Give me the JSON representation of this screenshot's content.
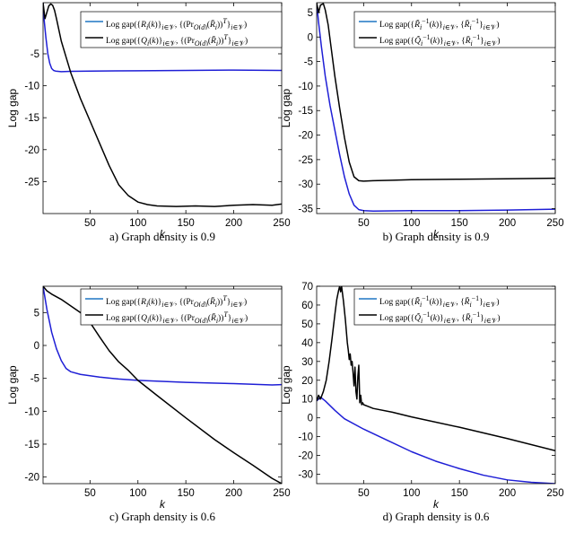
{
  "colors": {
    "blue": "#1f1fd6",
    "legend_blue": "#1f77c4",
    "black": "#000000"
  },
  "chart_data": [
    {
      "type": "line",
      "caption": "a) Graph density is 0.9",
      "xlabel": "k",
      "ylabel": "Log gap",
      "xlim": [
        1,
        250
      ],
      "ylim": [
        -30,
        3
      ],
      "xticks": [
        "50",
        "100",
        "150",
        "200",
        "250"
      ],
      "yticks": [
        "-5",
        "-10",
        "-15",
        "-20",
        "-25"
      ],
      "legend_position": "top-right",
      "grid": false,
      "series": [
        {
          "name": "Log gap({R_i(k)}_{i∈V}, {(Pr_{O(d)}(R̄_i))^T}_{i∈V})",
          "legend_html": "Log gap({<i>R<sub>i</sub></i>(<i>k</i>)}<sub><i>i</i>∈𝒱</sub>, {(Pr<sub><i>O</i>(<i>d</i>)</sub>(<i>R̄<sub>i</sub></i>))<sup><i>T</i></sup>}<sub><i>i</i>∈𝒱</sub>)",
          "color_key": "blue",
          "x": [
            1,
            2,
            4,
            6,
            8,
            10,
            12,
            14,
            20,
            30,
            50,
            100,
            150,
            200,
            250
          ],
          "y": [
            3,
            0.5,
            -2.5,
            -5,
            -6.5,
            -7.3,
            -7.6,
            -7.7,
            -7.8,
            -7.75,
            -7.7,
            -7.65,
            -7.6,
            -7.55,
            -7.6
          ]
        },
        {
          "name": "Log gap({Q_i(k)}_{i∈V}, {(Pr_{O(d)}(R̄_i))^T}_{i∈V})",
          "legend_html": "Log gap({<i>Q<sub>i</sub></i>(<i>k</i>)}<sub><i>i</i>∈𝒱</sub>, {(Pr<sub><i>O</i>(<i>d</i>)</sub>(<i>R̄<sub>i</sub></i>))<sup><i>T</i></sup>}<sub><i>i</i>∈𝒱</sub>)",
          "color_key": "black",
          "x": [
            1,
            3,
            5,
            7,
            9,
            11,
            13,
            15,
            20,
            25,
            30,
            40,
            50,
            60,
            70,
            80,
            90,
            100,
            110,
            120,
            140,
            160,
            180,
            200,
            220,
            240,
            250
          ],
          "y": [
            3,
            0.5,
            1.5,
            2.5,
            2.8,
            2.6,
            1.8,
            0.5,
            -3,
            -5.5,
            -8,
            -12,
            -15.5,
            -19,
            -22.5,
            -25.5,
            -27.2,
            -28.2,
            -28.6,
            -28.8,
            -28.9,
            -28.8,
            -28.9,
            -28.7,
            -28.6,
            -28.7,
            -28.5
          ]
        }
      ]
    },
    {
      "type": "line",
      "caption": "b) Graph density is 0.9",
      "xlabel": "k",
      "ylabel": "Log gap",
      "xlim": [
        1,
        250
      ],
      "ylim": [
        -36,
        7
      ],
      "xticks": [
        "50",
        "100",
        "150",
        "200",
        "250"
      ],
      "yticks": [
        "5",
        "0",
        "-5",
        "-10",
        "-15",
        "-20",
        "-25",
        "-30",
        "-35"
      ],
      "legend_position": "top-right",
      "grid": false,
      "series": [
        {
          "name": "Log gap({R̃_i^{-1}(k)}_{i∈V}, {R̄_i^{-1}}_{i∈V})",
          "legend_html": "Log gap({<i>R̃</i><sub><i>i</i></sub><sup>−1</sup>(<i>k</i>)}<sub><i>i</i>∈𝒱</sub>, {<i>R̄</i><sub><i>i</i></sub><sup>−1</sup>}<sub><i>i</i>∈𝒱</sub>)",
          "color_key": "blue",
          "x": [
            1,
            3,
            6,
            10,
            15,
            20,
            25,
            30,
            35,
            40,
            45,
            50,
            60,
            100,
            150,
            200,
            250
          ],
          "y": [
            7,
            3,
            -2,
            -8,
            -14,
            -19,
            -24,
            -28.5,
            -32,
            -34.3,
            -35.2,
            -35.4,
            -35.5,
            -35.4,
            -35.4,
            -35.3,
            -35.1
          ]
        },
        {
          "name": "Log gap({Q̃_i^{-1}(k)}_{i∈V}, {R̄_i^{-1}}_{i∈V})",
          "legend_html": "Log gap({<i>Q̃</i><sub><i>i</i></sub><sup>−1</sup>(<i>k</i>)}<sub><i>i</i>∈𝒱</sub>, {<i>R̄</i><sub><i>i</i></sub><sup>−1</sup>}<sub><i>i</i>∈𝒱</sub>)",
          "color_key": "black",
          "x": [
            1,
            3,
            5,
            8,
            10,
            13,
            16,
            20,
            25,
            30,
            35,
            40,
            45,
            50,
            60,
            80,
            100,
            150,
            200,
            250
          ],
          "y": [
            7,
            5,
            6.5,
            6.8,
            5.5,
            2.5,
            -2,
            -8,
            -14.5,
            -20.5,
            -25.5,
            -28.5,
            -29.3,
            -29.4,
            -29.3,
            -29.2,
            -29.1,
            -29,
            -28.9,
            -28.8
          ]
        }
      ]
    },
    {
      "type": "line",
      "caption": "c) Graph density is 0.6",
      "xlabel": "k",
      "ylabel": "Log gap",
      "xlim": [
        1,
        250
      ],
      "ylim": [
        -21,
        9
      ],
      "xticks": [
        "50",
        "100",
        "150",
        "200",
        "250"
      ],
      "yticks": [
        "5",
        "0",
        "-5",
        "-10",
        "-15",
        "-20"
      ],
      "legend_position": "top-right",
      "grid": false,
      "series": [
        {
          "name": "Log gap({R_i(k)}_{i∈V}, {(Pr_{O(d)}(R̄_i))^T}_{i∈V})",
          "legend_html": "Log gap({<i>R<sub>i</sub></i>(<i>k</i>)}<sub><i>i</i>∈𝒱</sub>, {(Pr<sub><i>O</i>(<i>d</i>)</sub>(<i>R̄<sub>i</sub></i>))<sup><i>T</i></sup>}<sub><i>i</i>∈𝒱</sub>)",
          "color_key": "blue",
          "x": [
            1,
            5,
            10,
            15,
            20,
            25,
            30,
            40,
            60,
            80,
            100,
            150,
            200,
            240,
            250
          ],
          "y": [
            9,
            5.5,
            2,
            -0.5,
            -2.3,
            -3.5,
            -4,
            -4.4,
            -4.8,
            -5.1,
            -5.3,
            -5.6,
            -5.8,
            -6,
            -5.95
          ]
        },
        {
          "name": "Log gap({Q_i(k)}_{i∈V}, {(Pr_{O(d)}(R̄_i))^T}_{i∈V})",
          "legend_html": "Log gap({<i>Q<sub>i</sub></i>(<i>k</i>)}<sub><i>i</i>∈𝒱</sub>, {(Pr<sub><i>O</i>(<i>d</i>)</sub>(<i>R̄<sub>i</sub></i>))<sup><i>T</i></sup>}<sub><i>i</i>∈𝒱</sub>)",
          "color_key": "black",
          "x": [
            1,
            5,
            10,
            20,
            30,
            40,
            50,
            60,
            70,
            80,
            90,
            100,
            120,
            150,
            180,
            200,
            220,
            240,
            250
          ],
          "y": [
            9,
            8.3,
            7.8,
            7,
            6,
            5,
            3.5,
            1.3,
            -0.8,
            -2.5,
            -3.8,
            -5.3,
            -7.6,
            -11,
            -14.3,
            -16.3,
            -18.2,
            -20.2,
            -21
          ]
        }
      ]
    },
    {
      "type": "line",
      "caption": "d) Graph density is 0.6",
      "xlabel": "k",
      "ylabel": "Log gap",
      "xlim": [
        1,
        250
      ],
      "ylim": [
        -35,
        70
      ],
      "xticks": [
        "50",
        "100",
        "150",
        "200",
        "250"
      ],
      "yticks": [
        "70",
        "60",
        "50",
        "40",
        "30",
        "20",
        "10",
        "0",
        "-10",
        "-20",
        "-30"
      ],
      "legend_position": "top-right",
      "grid": false,
      "series": [
        {
          "name": "Log gap({R̃_i^{-1}(k)}_{i∈V}, {R̄_i^{-1}}_{i∈V})",
          "legend_html": "Log gap({<i>R̃</i><sub><i>i</i></sub><sup>−1</sup>(<i>k</i>)}<sub><i>i</i>∈𝒱</sub>, {<i>R̄</i><sub><i>i</i></sub><sup>−1</sup>}<sub><i>i</i>∈𝒱</sub>)",
          "color_key": "blue",
          "x": [
            1,
            5,
            10,
            20,
            30,
            50,
            75,
            100,
            125,
            150,
            175,
            200,
            225,
            250
          ],
          "y": [
            9,
            11,
            9,
            4,
            -0.5,
            -6,
            -12,
            -18,
            -23,
            -27,
            -30.5,
            -33,
            -34.3,
            -35
          ]
        },
        {
          "name": "Log gap({Q̃_i^{-1}(k)}_{i∈V}, {R̄_i^{-1}}_{i∈V})",
          "legend_html": "Log gap({<i>Q̃</i><sub><i>i</i></sub><sup>−1</sup>(<i>k</i>)}<sub><i>i</i>∈𝒱</sub>, {<i>R̄</i><sub><i>i</i></sub><sup>−1</sup>}<sub><i>i</i>∈𝒱</sub>)",
          "color_key": "black",
          "x": [
            1,
            3,
            5,
            8,
            11,
            14,
            17,
            20,
            22,
            24,
            25,
            26,
            27,
            28,
            29,
            30,
            31,
            32,
            33,
            34,
            35,
            36,
            37,
            38,
            39,
            40,
            41,
            42,
            43,
            44,
            45,
            46,
            47,
            48,
            49,
            50,
            55,
            60,
            80,
            100,
            150,
            200,
            250
          ],
          "y": [
            9,
            12,
            10,
            14,
            20,
            30,
            42,
            55,
            63,
            68,
            70,
            67,
            70,
            66,
            62,
            57,
            52,
            46,
            40,
            36,
            31,
            34,
            28,
            30,
            24,
            17,
            27,
            14,
            10,
            22,
            28,
            8,
            12,
            7,
            8,
            7,
            6,
            5,
            3,
            0.5,
            -5,
            -11,
            -17.5
          ]
        }
      ]
    }
  ]
}
